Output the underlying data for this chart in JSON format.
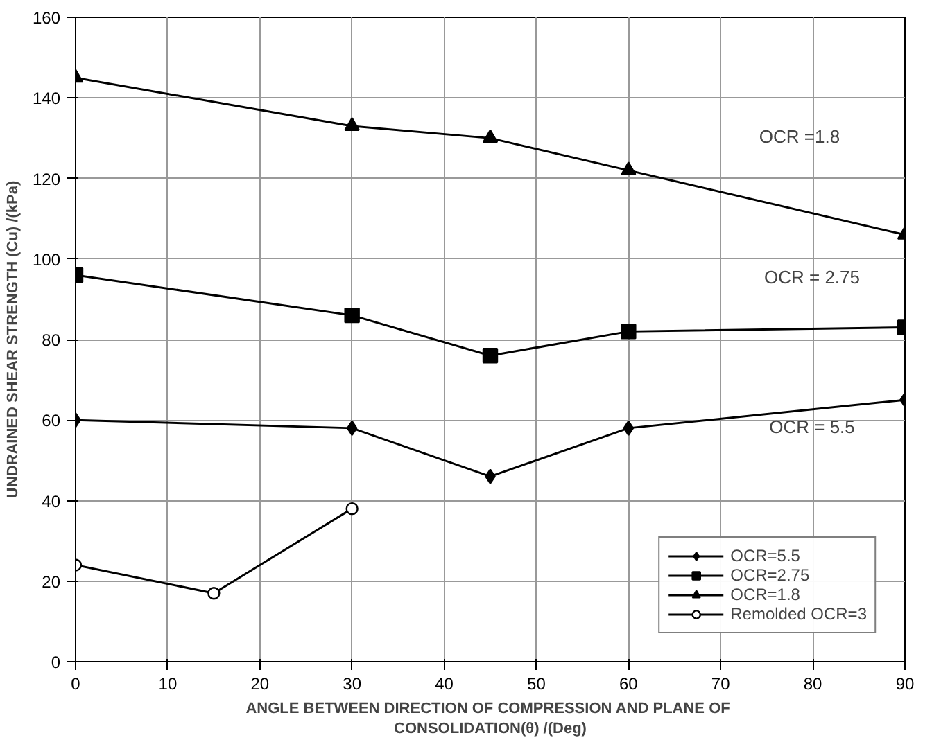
{
  "chart_data": {
    "type": "line",
    "xlabel": "ANGLE BETWEEN  DIRECTION OF COMPRESSION AND PLANE OF\nCONSOLIDATION(θ) /(Deg)",
    "ylabel": "UNDRAINED SHEAR STRENGTH (Cu) /(kPa)",
    "xlim": [
      0,
      90
    ],
    "xticks": [
      0,
      10,
      20,
      30,
      40,
      50,
      60,
      70,
      80,
      90
    ],
    "ylim": [
      0,
      160
    ],
    "yticks": [
      0,
      20,
      40,
      60,
      80,
      100,
      120,
      140,
      160
    ],
    "grid": true,
    "legend": "bottom right",
    "line_style": "solid",
    "series": [
      {
        "name": "OCR=5.5",
        "color": "#000000",
        "marker": "diamond",
        "x": [
          0,
          30,
          45,
          60,
          90
        ],
        "values": [
          60,
          58,
          46,
          58,
          65
        ]
      },
      {
        "name": "OCR=2.75",
        "color": "#000000",
        "marker": "square",
        "x": [
          0,
          30,
          45,
          60,
          90
        ],
        "values": [
          96,
          86,
          76,
          82,
          83
        ]
      },
      {
        "name": "OCR=1.8",
        "color": "#000000",
        "marker": "triangle",
        "x": [
          0,
          30,
          45,
          60,
          90
        ],
        "values": [
          145,
          133,
          130,
          122,
          106
        ]
      },
      {
        "name": "Remolded OCR=3",
        "color": "#000000",
        "marker": "circle",
        "x": [
          0,
          15,
          30
        ],
        "values": [
          24,
          17,
          38
        ]
      }
    ],
    "annotations": [
      "OCR =1.8",
      "OCR = 2.75",
      "OCR = 5.5"
    ]
  }
}
